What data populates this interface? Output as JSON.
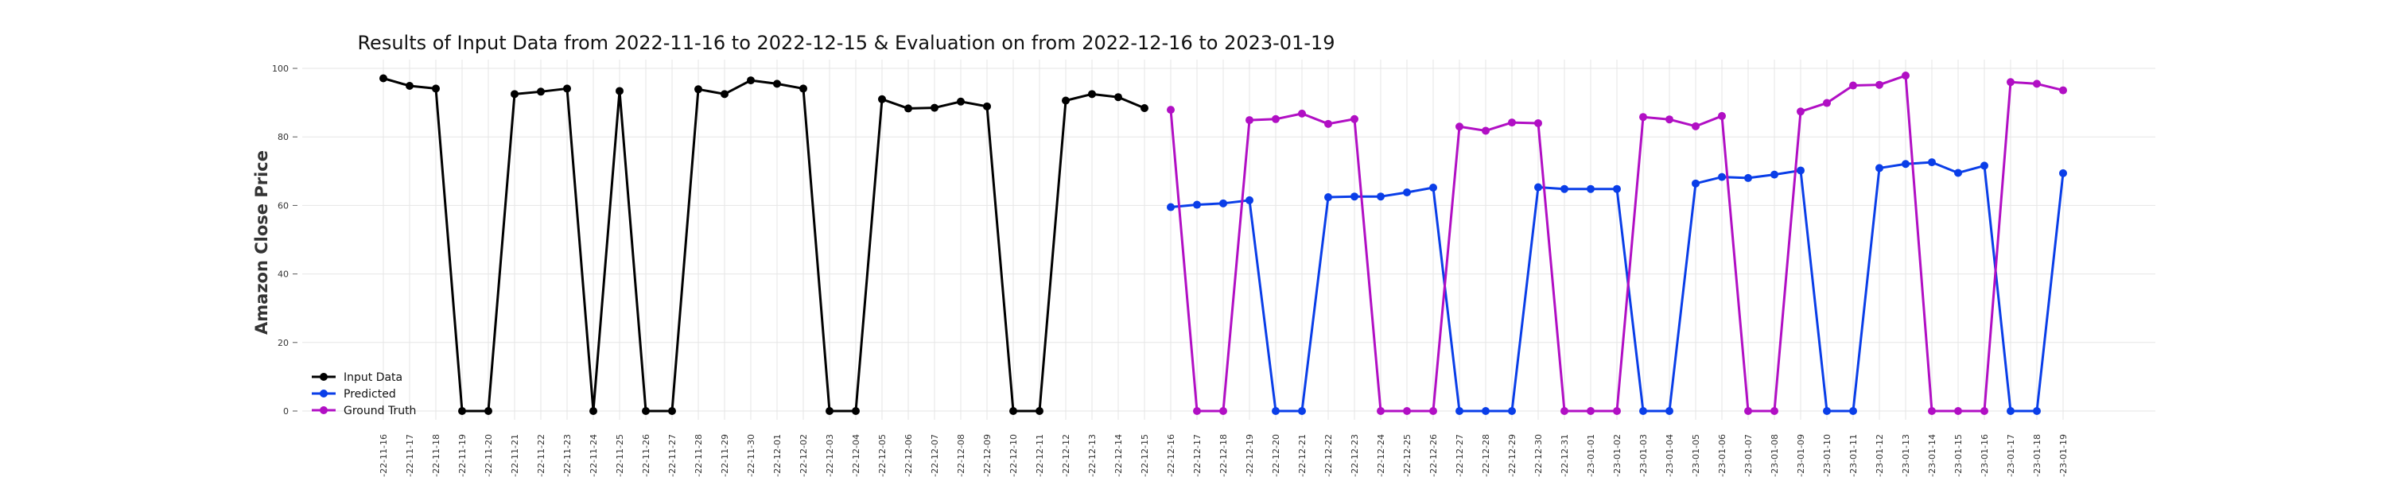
{
  "chart_data": {
    "type": "line",
    "title": "Results of Input Data from 2022-11-16 to 2022-12-15 & Evaluation on from 2022-12-16 to 2023-01-19",
    "xlabel": "",
    "ylabel": "Amazon Close Price",
    "ylim": [
      0,
      100
    ],
    "yticks": [
      0,
      20,
      40,
      60,
      80,
      100
    ],
    "grid": true,
    "legend_position": "bottom-left",
    "categories": [
      "2022-11-16",
      "2022-11-17",
      "2022-11-18",
      "2022-11-19",
      "2022-11-20",
      "2022-11-21",
      "2022-11-22",
      "2022-11-23",
      "2022-11-24",
      "2022-11-25",
      "2022-11-26",
      "2022-11-27",
      "2022-11-28",
      "2022-11-29",
      "2022-11-30",
      "2022-12-01",
      "2022-12-02",
      "2022-12-03",
      "2022-12-04",
      "2022-12-05",
      "2022-12-06",
      "2022-12-07",
      "2022-12-08",
      "2022-12-09",
      "2022-12-10",
      "2022-12-11",
      "2022-12-12",
      "2022-12-13",
      "2022-12-14",
      "2022-12-15",
      "2022-12-16",
      "2022-12-17",
      "2022-12-18",
      "2022-12-19",
      "2022-12-20",
      "2022-12-21",
      "2022-12-22",
      "2022-12-23",
      "2022-12-24",
      "2022-12-25",
      "2022-12-26",
      "2022-12-27",
      "2022-12-28",
      "2022-12-29",
      "2022-12-30",
      "2022-12-31",
      "2023-01-01",
      "2023-01-02",
      "2023-01-03",
      "2023-01-04",
      "2023-01-05",
      "2023-01-06",
      "2023-01-07",
      "2023-01-08",
      "2023-01-09",
      "2023-01-10",
      "2023-01-11",
      "2023-01-12",
      "2023-01-13",
      "2023-01-14",
      "2023-01-15",
      "2023-01-16",
      "2023-01-17",
      "2023-01-18",
      "2023-01-19"
    ],
    "tick_labels": [
      "-22-11-16",
      "-22-11-17",
      "-22-11-18",
      "-22-11-19",
      "-22-11-20",
      "-22-11-21",
      "-22-11-22",
      "-22-11-23",
      "-22-11-24",
      "-22-11-25",
      "-22-11-26",
      "-22-11-27",
      "-22-11-28",
      "-22-11-29",
      "-22-11-30",
      "-22-12-01",
      "-22-12-02",
      "-22-12-03",
      "-22-12-04",
      "-22-12-05",
      "-22-12-06",
      "-22-12-07",
      "-22-12-08",
      "-22-12-09",
      "-22-12-10",
      "-22-12-11",
      "-22-12-12",
      "-22-12-13",
      "-22-12-14",
      "-22-12-15",
      "-22-12-16",
      "-22-12-17",
      "-22-12-18",
      "-22-12-19",
      "-22-12-20",
      "-22-12-21",
      "-22-12-22",
      "-22-12-23",
      "-22-12-24",
      "-22-12-25",
      "-22-12-26",
      "-22-12-27",
      "-22-12-28",
      "-22-12-29",
      "-22-12-30",
      "-22-12-31",
      "-23-01-01",
      "-23-01-02",
      "-23-01-03",
      "-23-01-04",
      "-23-01-05",
      "-23-01-06",
      "-23-01-07",
      "-23-01-08",
      "-23-01-09",
      "-23-01-10",
      "-23-01-11",
      "-23-01-12",
      "-23-01-13",
      "-23-01-14",
      "-23-01-15",
      "-23-01-16",
      "-23-01-17",
      "-23-01-18",
      "-23-01-19"
    ],
    "series": [
      {
        "name": "Input Data",
        "color": "#000000",
        "x": [
          "2022-11-16",
          "2022-11-17",
          "2022-11-18",
          "2022-11-19",
          "2022-11-20",
          "2022-11-21",
          "2022-11-22",
          "2022-11-23",
          "2022-11-24",
          "2022-11-25",
          "2022-11-26",
          "2022-11-27",
          "2022-11-28",
          "2022-11-29",
          "2022-11-30",
          "2022-12-01",
          "2022-12-02",
          "2022-12-03",
          "2022-12-04",
          "2022-12-05",
          "2022-12-06",
          "2022-12-07",
          "2022-12-08",
          "2022-12-09",
          "2022-12-10",
          "2022-12-11",
          "2022-12-12",
          "2022-12-13",
          "2022-12-14",
          "2022-12-15"
        ],
        "values": [
          97.1,
          94.9,
          94.1,
          0,
          0,
          92.5,
          93.2,
          94.1,
          0,
          93.4,
          0,
          0,
          93.9,
          92.5,
          96.5,
          95.5,
          94.1,
          0,
          0,
          91.0,
          88.3,
          88.5,
          90.3,
          88.9,
          0,
          0,
          90.6,
          92.5,
          91.6,
          88.4
        ]
      },
      {
        "name": "Predicted",
        "color": "#0a3ee8",
        "x": [
          "2022-12-16",
          "2022-12-17",
          "2022-12-18",
          "2022-12-19",
          "2022-12-20",
          "2022-12-21",
          "2022-12-22",
          "2022-12-23",
          "2022-12-24",
          "2022-12-25",
          "2022-12-26",
          "2022-12-27",
          "2022-12-28",
          "2022-12-29",
          "2022-12-30",
          "2022-12-31",
          "2023-01-01",
          "2023-01-02",
          "2023-01-03",
          "2023-01-04",
          "2023-01-05",
          "2023-01-06",
          "2023-01-07",
          "2023-01-08",
          "2023-01-09",
          "2023-01-10",
          "2023-01-11",
          "2023-01-12",
          "2023-01-13",
          "2023-01-14",
          "2023-01-15",
          "2023-01-16",
          "2023-01-17",
          "2023-01-18",
          "2023-01-19"
        ],
        "values": [
          59.5,
          60.2,
          60.6,
          61.5,
          0,
          0,
          62.4,
          62.6,
          62.6,
          63.8,
          65.2,
          0,
          0,
          0,
          65.3,
          64.8,
          64.8,
          64.8,
          0,
          0,
          66.4,
          68.3,
          68.0,
          69.0,
          70.2,
          0,
          0,
          70.9,
          72.1,
          72.6,
          69.5,
          71.6,
          0,
          0,
          69.4
        ]
      },
      {
        "name": "Ground Truth",
        "color": "#b10fc4",
        "x": [
          "2022-12-16",
          "2022-12-17",
          "2022-12-18",
          "2022-12-19",
          "2022-12-20",
          "2022-12-21",
          "2022-12-22",
          "2022-12-23",
          "2022-12-24",
          "2022-12-25",
          "2022-12-26",
          "2022-12-27",
          "2022-12-28",
          "2022-12-29",
          "2022-12-30",
          "2022-12-31",
          "2023-01-01",
          "2023-01-02",
          "2023-01-03",
          "2023-01-04",
          "2023-01-05",
          "2023-01-06",
          "2023-01-07",
          "2023-01-08",
          "2023-01-09",
          "2023-01-10",
          "2023-01-11",
          "2023-01-12",
          "2023-01-13",
          "2023-01-14",
          "2023-01-15",
          "2023-01-16",
          "2023-01-17",
          "2023-01-18",
          "2023-01-19"
        ],
        "values": [
          87.9,
          0,
          0,
          84.9,
          85.2,
          86.8,
          83.8,
          85.2,
          0,
          0,
          0,
          83.0,
          81.8,
          84.2,
          84.0,
          0,
          0,
          0,
          85.8,
          85.1,
          83.1,
          86.1,
          0,
          0,
          87.4,
          89.9,
          95.0,
          95.2,
          97.9,
          0,
          0,
          0,
          96.0,
          95.5,
          93.6
        ]
      }
    ]
  }
}
